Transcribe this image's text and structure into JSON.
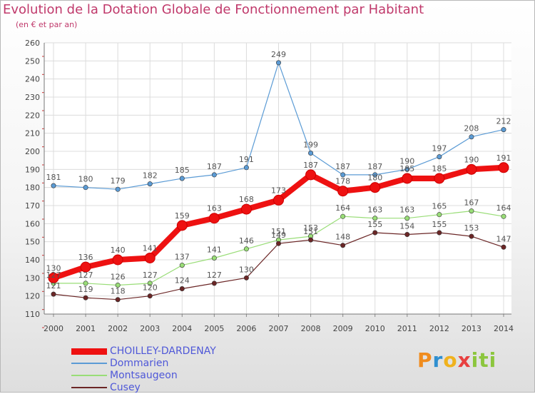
{
  "header": {
    "title": "Evolution de la Dotation Globale de Fonctionnement par Habitant",
    "subtitle": "(en € et par an)"
  },
  "brand": {
    "text": "Proxiti",
    "parts": [
      "P",
      "r",
      "o",
      "x",
      "iti"
    ]
  },
  "chart_data": {
    "type": "line",
    "title": "Evolution de la Dotation Globale de Fonctionnement par Habitant",
    "subtitle": "(en € et par an)",
    "xlabel": "",
    "ylabel": "",
    "ylim": [
      110,
      260
    ],
    "yticks": [
      110,
      120,
      130,
      140,
      150,
      160,
      170,
      180,
      190,
      200,
      210,
      220,
      230,
      240,
      250,
      260
    ],
    "grid": true,
    "legend_position": "bottom-left",
    "x": [
      "2000",
      "2001",
      "2002",
      "2003",
      "2004",
      "2005",
      "2006",
      "2007",
      "2008",
      "2009",
      "2010",
      "2011",
      "2012",
      "2013",
      "2014"
    ],
    "series": [
      {
        "name": "CHOILLEY-DARDENAY",
        "color": "#ee1111",
        "values": [
          130,
          136,
          140,
          141,
          159,
          163,
          168,
          173,
          187,
          178,
          180,
          185,
          185,
          190,
          191
        ],
        "labels": [
          "130",
          "136",
          "140",
          "141",
          "159",
          "163",
          "168",
          "173",
          "187",
          "178",
          "180",
          "185",
          "185",
          "190",
          "191"
        ]
      },
      {
        "name": "Dommarien",
        "color": "#5b9bd5",
        "values": [
          181,
          180,
          179,
          182,
          185,
          187,
          191,
          249,
          199,
          187,
          187,
          190,
          197,
          208,
          212
        ],
        "labels": [
          "181",
          "180",
          "179",
          "182",
          "185",
          "187",
          "191",
          "249",
          "199",
          "187",
          "187",
          "190",
          "197",
          "208",
          "212"
        ]
      },
      {
        "name": "Montsaugeon",
        "color": "#99dd77",
        "values": [
          127,
          127,
          126,
          127,
          137,
          141,
          146,
          151,
          153,
          164,
          163,
          163,
          165,
          167,
          164
        ],
        "labels": [
          "127",
          "127",
          "126",
          "127",
          "137",
          "141",
          "146",
          "151",
          "153",
          "164",
          "163",
          "163",
          "165",
          "167",
          "164"
        ]
      },
      {
        "name": "Cusey",
        "color": "#6b2626",
        "values": [
          121,
          119,
          118,
          120,
          124,
          127,
          130,
          149,
          151,
          148,
          155,
          154,
          155,
          153,
          147
        ],
        "labels": [
          "121",
          "119",
          "118",
          "120",
          "124",
          "127",
          "130",
          "149",
          "151",
          "148",
          "155",
          "154",
          "155",
          "153",
          "147"
        ]
      }
    ]
  }
}
